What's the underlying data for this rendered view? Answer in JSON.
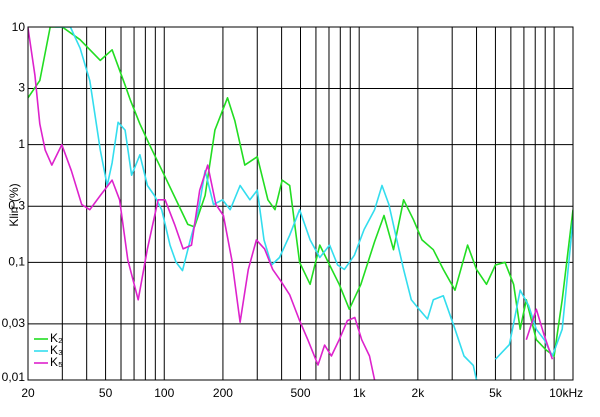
{
  "chart_data": {
    "type": "line",
    "ylabel": "Klirr (%)",
    "xscale": "log",
    "yscale": "log",
    "grid": true,
    "legend": "lower left",
    "xlim": [
      20,
      12500
    ],
    "ylim": [
      0.01,
      10
    ],
    "xticks": [
      20,
      50,
      100,
      200,
      500,
      {
        "value": 1000,
        "label": "1k"
      },
      {
        "value": 2000,
        "label": "2k"
      },
      {
        "value": 5000,
        "label": "5k"
      },
      {
        "value": 10000,
        "label": "10kHz"
      }
    ],
    "xminor": [
      30,
      40,
      60,
      70,
      80,
      90,
      300,
      400,
      600,
      700,
      800,
      900,
      3000,
      4000,
      6000,
      7000,
      8000,
      9000
    ],
    "yticks": [
      10,
      3,
      1,
      {
        "value": 0.3,
        "label": "0,3"
      },
      {
        "value": 0.1,
        "label": "0,1"
      },
      {
        "value": 0.03,
        "label": "0,03"
      },
      {
        "value": 0.01,
        "label": "0,01"
      }
    ],
    "series": [
      {
        "name": "K₂",
        "color": "#22dd22",
        "x": [
          20,
          23,
          26,
          30,
          37,
          47,
          54,
          63,
          67,
          75,
          84,
          100,
          118,
          132,
          143,
          162,
          182,
          211,
          230,
          259,
          300,
          340,
          370,
          403,
          440,
          495,
          560,
          628,
          705,
          790,
          890,
          1020,
          1200,
          1340,
          1500,
          1690,
          1900,
          2100,
          2400,
          2700,
          3100,
          3600,
          4000,
          4500,
          5000,
          5600,
          6200,
          6700,
          7200,
          8100,
          9100,
          10000,
          11000,
          12500
        ],
        "values": [
          2.5,
          3.5,
          10,
          10,
          7.8,
          5.2,
          6.4,
          3.2,
          2.4,
          1.5,
          1.0,
          0.55,
          0.31,
          0.21,
          0.2,
          0.37,
          1.33,
          2.5,
          1.6,
          0.67,
          0.79,
          0.34,
          0.28,
          0.5,
          0.45,
          0.1,
          0.065,
          0.14,
          0.095,
          0.065,
          0.04,
          0.065,
          0.15,
          0.25,
          0.128,
          0.34,
          0.23,
          0.155,
          0.128,
          0.087,
          0.058,
          0.14,
          0.087,
          0.065,
          0.095,
          0.1,
          0.065,
          0.027,
          0.048,
          0.022,
          0.018,
          0.016,
          0.048,
          0.28
        ]
      },
      {
        "name": "K₃",
        "color": "#33ddee",
        "x": [
          27.5,
          33,
          37,
          41.5,
          47,
          51,
          54,
          58,
          63,
          68,
          75,
          82,
          89,
          97,
          107,
          115,
          124,
          136,
          150,
          162,
          179,
          199,
          218,
          245,
          275,
          300,
          325,
          355,
          390,
          440,
          495,
          560,
          628,
          705,
          775,
          840,
          945,
          1060,
          1200,
          1310,
          1420,
          1560,
          1690,
          1850,
          2030,
          2240,
          2400,
          2700,
          3100,
          3450,
          3850,
          4000,
          4650,
          5000,
          5900,
          6700,
          7400,
          8100,
          8900,
          9800,
          11000,
          12500
        ],
        "values": [
          10,
          10,
          6.6,
          3.5,
          0.9,
          0.45,
          0.7,
          1.55,
          1.33,
          0.55,
          0.82,
          0.45,
          0.37,
          0.28,
          0.14,
          0.1,
          0.085,
          0.155,
          0.28,
          0.6,
          0.31,
          0.34,
          0.28,
          0.45,
          0.34,
          0.41,
          0.155,
          0.095,
          0.11,
          0.17,
          0.28,
          0.155,
          0.11,
          0.14,
          0.095,
          0.087,
          0.115,
          0.19,
          0.28,
          0.45,
          0.31,
          0.155,
          0.087,
          0.048,
          0.04,
          0.033,
          0.048,
          0.052,
          0.027,
          0.016,
          0.0133,
          0.01,
          null,
          0.015,
          0.02,
          0.058,
          0.043,
          0.027,
          0.022,
          0.016,
          0.027,
          0.23
        ]
      },
      {
        "name": "K₅",
        "color": "#dd22cc",
        "x": [
          20,
          21.7,
          23,
          24.5,
          26.5,
          29.8,
          33.4,
          37.7,
          41.5,
          47,
          54,
          59,
          65,
          73.5,
          82,
          93,
          101,
          113,
          125,
          138,
          152,
          167,
          184,
          201,
          222,
          245,
          270,
          297,
          327,
          360,
          395,
          440,
          495,
          545,
          615,
          665,
          720,
          790,
          870,
          950,
          1030,
          1130,
          1200,
          4000,
          7200,
          8100,
          8900,
          9800
        ],
        "values": [
          9.8,
          3.9,
          1.5,
          0.9,
          0.67,
          1.0,
          0.6,
          0.31,
          0.28,
          0.37,
          0.5,
          0.34,
          0.105,
          0.048,
          0.13,
          0.34,
          0.34,
          0.21,
          0.13,
          0.14,
          0.41,
          0.67,
          0.31,
          0.25,
          0.105,
          0.031,
          0.087,
          0.155,
          0.13,
          0.087,
          0.07,
          0.053,
          0.032,
          0.022,
          0.0134,
          0.0198,
          0.016,
          0.022,
          0.032,
          0.034,
          0.022,
          0.016,
          0.01,
          null,
          0.022,
          0.04,
          0.024,
          0.015
        ]
      }
    ]
  }
}
